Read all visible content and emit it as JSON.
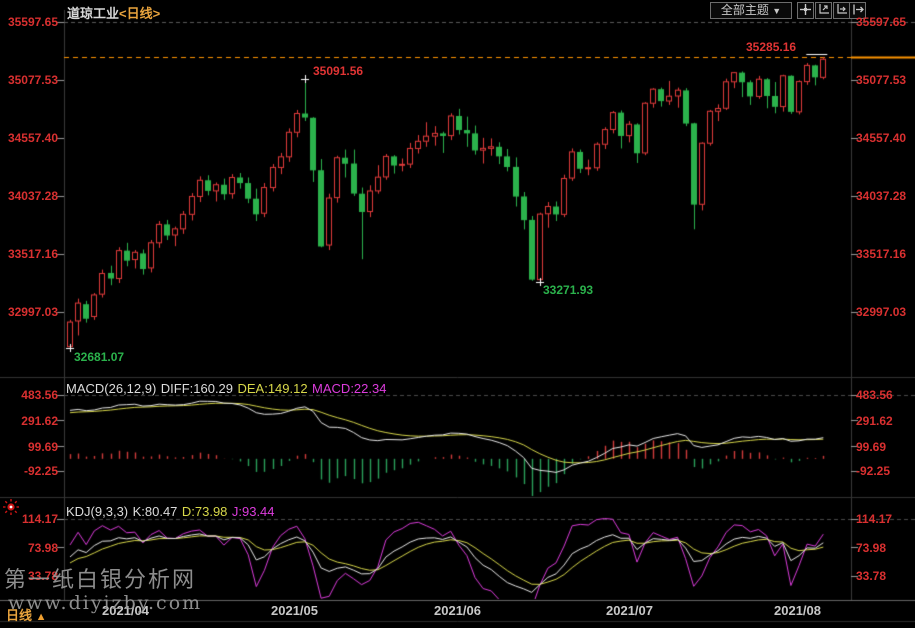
{
  "window": {
    "instrument": "道琼工业",
    "period": "<日线>"
  },
  "toolbar": {
    "themes_label": "全部主题",
    "themes_arrow": "▼",
    "icons": [
      "crosshair",
      "scale-y-axis",
      "scale-x-axis",
      "expand-right"
    ]
  },
  "chart_data": {
    "type": "candlestick",
    "title": "道琼工业 日线 (Dow Jones Industrial daily)",
    "y_axis": {
      "labels": [
        "35597.65",
        "35077.53",
        "34557.40",
        "34037.28",
        "33517.16",
        "32997.03"
      ],
      "values": [
        35597.65,
        35077.53,
        34557.4,
        34037.28,
        33517.16,
        32997.03
      ]
    },
    "x_axis": {
      "labels": [
        "2021/04",
        "2021/05",
        "2021/06",
        "2021/07",
        "2021/08"
      ],
      "month_start_indices": [
        3,
        24,
        44,
        66,
        87
      ]
    },
    "annotations": {
      "latest_price_label": "35285.16",
      "latest_price_value": 35285.16,
      "peak_label": "35091.56",
      "trough_label": "33271.93",
      "start_low_label": "32681.07"
    },
    "candles": [
      [
        "03-29",
        32690,
        32930,
        32681.07,
        32910
      ],
      [
        "03-30",
        32920,
        33120,
        32790,
        33080
      ],
      [
        "03-31",
        33070,
        33100,
        32905,
        32940
      ],
      [
        "04-01",
        32960,
        33170,
        32930,
        33153
      ],
      [
        "04-05",
        33160,
        33380,
        33130,
        33345
      ],
      [
        "04-06",
        33350,
        33415,
        33240,
        33300
      ],
      [
        "04-07",
        33300,
        33580,
        33260,
        33550
      ],
      [
        "04-08",
        33550,
        33620,
        33410,
        33460
      ],
      [
        "04-09",
        33470,
        33555,
        33390,
        33535
      ],
      [
        "04-12",
        33525,
        33560,
        33335,
        33385
      ],
      [
        "04-13",
        33395,
        33645,
        33355,
        33620
      ],
      [
        "04-14",
        33620,
        33815,
        33575,
        33785
      ],
      [
        "04-15",
        33785,
        33825,
        33645,
        33685
      ],
      [
        "04-16",
        33690,
        33765,
        33590,
        33745
      ],
      [
        "04-19",
        33745,
        33905,
        33700,
        33875
      ],
      [
        "04-20",
        33875,
        34065,
        33820,
        34035
      ],
      [
        "04-21",
        34035,
        34215,
        33985,
        34180
      ],
      [
        "04-22",
        34180,
        34225,
        34045,
        34085
      ],
      [
        "04-23",
        34085,
        34160,
        33990,
        34140
      ],
      [
        "04-26",
        34140,
        34195,
        34005,
        34055
      ],
      [
        "04-27",
        34060,
        34235,
        34015,
        34205
      ],
      [
        "04-28",
        34205,
        34245,
        34105,
        34155
      ],
      [
        "04-29",
        34155,
        34205,
        33975,
        34015
      ],
      [
        "04-30",
        34015,
        34105,
        33815,
        33875
      ],
      [
        "05-03",
        33885,
        34155,
        33850,
        34115
      ],
      [
        "05-04",
        34115,
        34325,
        34080,
        34295
      ],
      [
        "05-05",
        34295,
        34425,
        34235,
        34390
      ],
      [
        "05-06",
        34390,
        34645,
        34345,
        34610
      ],
      [
        "05-07",
        34610,
        34810,
        34565,
        34778
      ],
      [
        "05-10",
        34778,
        35091.56,
        34711,
        34742
      ],
      [
        "05-11",
        34740,
        34745,
        34165,
        34269
      ],
      [
        "05-12",
        34270,
        34370,
        33580,
        33587
      ],
      [
        "05-13",
        33600,
        34060,
        33555,
        34021
      ],
      [
        "05-14",
        34025,
        34400,
        33980,
        34382
      ],
      [
        "05-17",
        34382,
        34455,
        34205,
        34328
      ],
      [
        "05-18",
        34330,
        34455,
        34040,
        34061
      ],
      [
        "05-19",
        34060,
        34115,
        33473,
        33896
      ],
      [
        "05-20",
        33900,
        34135,
        33850,
        34084
      ],
      [
        "05-21",
        34085,
        34315,
        34060,
        34208
      ],
      [
        "05-24",
        34210,
        34415,
        34185,
        34394
      ],
      [
        "05-25",
        34394,
        34405,
        34240,
        34312
      ],
      [
        "05-26",
        34315,
        34375,
        34260,
        34323
      ],
      [
        "05-27",
        34325,
        34515,
        34290,
        34465
      ],
      [
        "05-28",
        34465,
        34585,
        34420,
        34529
      ],
      [
        "06-01",
        34530,
        34700,
        34480,
        34575
      ],
      [
        "06-02",
        34575,
        34665,
        34490,
        34600
      ],
      [
        "06-03",
        34600,
        34615,
        34425,
        34577
      ],
      [
        "06-04",
        34580,
        34780,
        34540,
        34756
      ],
      [
        "06-07",
        34756,
        34820,
        34590,
        34630
      ],
      [
        "06-08",
        34630,
        34750,
        34480,
        34600
      ],
      [
        "06-09",
        34600,
        34670,
        34410,
        34447
      ],
      [
        "06-10",
        34450,
        34560,
        34330,
        34466
      ],
      [
        "06-11",
        34466,
        34555,
        34400,
        34480
      ],
      [
        "06-14",
        34480,
        34520,
        34325,
        34394
      ],
      [
        "06-15",
        34394,
        34460,
        34260,
        34299
      ],
      [
        "06-16",
        34300,
        34385,
        33945,
        34034
      ],
      [
        "06-17",
        34035,
        34075,
        33740,
        33823
      ],
      [
        "06-18",
        33825,
        33860,
        33280,
        33290
      ],
      [
        "06-21",
        33290,
        33890,
        33271.93,
        33877
      ],
      [
        "06-22",
        33880,
        33985,
        33755,
        33945
      ],
      [
        "06-23",
        33945,
        33990,
        33815,
        33874
      ],
      [
        "06-24",
        33875,
        34230,
        33850,
        34196
      ],
      [
        "06-25",
        34200,
        34465,
        34175,
        34434
      ],
      [
        "06-28",
        34434,
        34455,
        34245,
        34283
      ],
      [
        "06-29",
        34285,
        34365,
        34225,
        34292
      ],
      [
        "06-30",
        34292,
        34520,
        34265,
        34503
      ],
      [
        "07-01",
        34503,
        34655,
        34460,
        34634
      ],
      [
        "07-02",
        34635,
        34800,
        34600,
        34786
      ],
      [
        "07-06",
        34786,
        34805,
        34465,
        34577
      ],
      [
        "07-07",
        34580,
        34710,
        34520,
        34682
      ],
      [
        "07-08",
        34680,
        34690,
        34335,
        34422
      ],
      [
        "07-09",
        34425,
        34880,
        34405,
        34870
      ],
      [
        "07-12",
        34870,
        35005,
        34830,
        34996
      ],
      [
        "07-13",
        34996,
        35010,
        34840,
        34889
      ],
      [
        "07-14",
        34890,
        35070,
        34855,
        34933
      ],
      [
        "07-15",
        34935,
        35010,
        34830,
        34987
      ],
      [
        "07-16",
        34985,
        35005,
        34665,
        34688
      ],
      [
        "07-19",
        34690,
        34695,
        33741,
        33962
      ],
      [
        "07-20",
        33965,
        34520,
        33910,
        34512
      ],
      [
        "07-21",
        34512,
        34810,
        34490,
        34798
      ],
      [
        "07-22",
        34798,
        34860,
        34710,
        34823
      ],
      [
        "07-23",
        34825,
        35090,
        34810,
        35062
      ],
      [
        "07-26",
        35062,
        35150,
        35005,
        35144
      ],
      [
        "07-27",
        35144,
        35155,
        34925,
        35058
      ],
      [
        "07-28",
        35058,
        35075,
        34855,
        34931
      ],
      [
        "07-29",
        34931,
        35115,
        34910,
        35085
      ],
      [
        "07-30",
        35085,
        35095,
        34825,
        34935
      ],
      [
        "08-02",
        34935,
        35060,
        34780,
        34838
      ],
      [
        "08-03",
        34840,
        35125,
        34795,
        35116
      ],
      [
        "08-04",
        35116,
        35120,
        34775,
        34793
      ],
      [
        "08-05",
        34793,
        35075,
        34770,
        35064
      ],
      [
        "08-06",
        35064,
        35230,
        35035,
        35209
      ],
      [
        "08-09",
        35209,
        35215,
        35030,
        35102
      ],
      [
        "08-10",
        35102,
        35285.16,
        35085,
        35264
      ]
    ],
    "macd": {
      "title": "MACD(26,12,9)",
      "diff_label": "DIFF:160.29",
      "dea_label": "DEA:149.12",
      "macd_label": "MACD:22.34",
      "y_labels": [
        "483.56",
        "291.62",
        "99.69",
        "-92.25"
      ],
      "y_values": [
        483.56,
        291.62,
        99.69,
        -92.25
      ]
    },
    "kdj": {
      "title": "KDJ(9,3,3)",
      "k_label": "K:80.47",
      "d_label": "D:73.98",
      "j_label": "J:93.44",
      "y_labels": [
        "114.17",
        "73.98",
        "33.78"
      ],
      "y_values": [
        114.17,
        73.98,
        33.78
      ]
    }
  },
  "footer": {
    "period_badge": "日线",
    "period_arrow": "▲",
    "watermark_line1": "第一纸白银分析网",
    "watermark_line2": "www.diyizby.com"
  },
  "colors": {
    "up": "#e23b3b",
    "down": "#2bb24c",
    "label_red": "#d93030",
    "label_green": "#2bb24c",
    "orange": "#ff9500",
    "yellow": "#d8d84a",
    "magenta": "#dd3cdd",
    "white_line": "#e8e8e8",
    "axis": "#3a3a3a",
    "grid": "#5a5a5a",
    "x_label": "#c8c8c8"
  }
}
